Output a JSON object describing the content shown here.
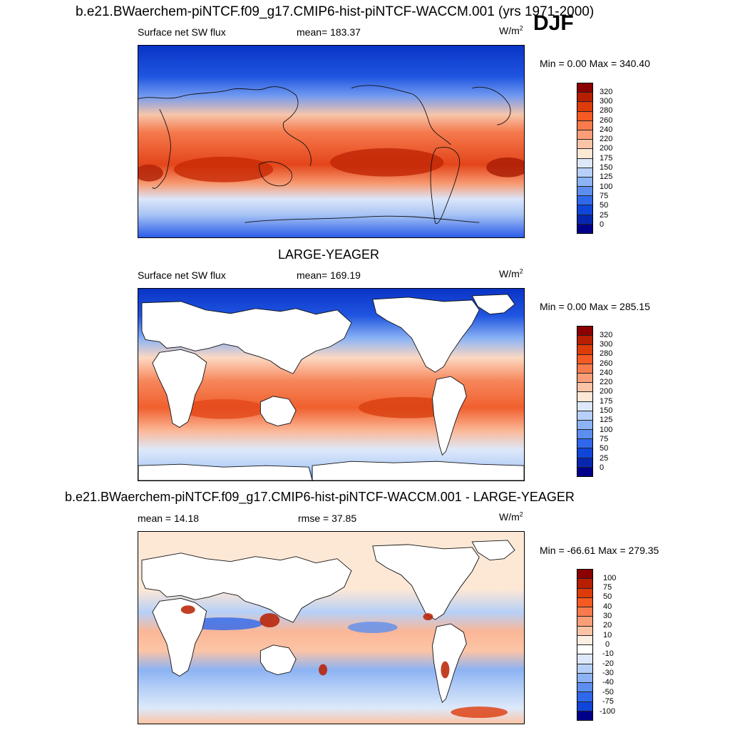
{
  "figure": {
    "title": "b.e21.BWaerchem-piNTCF.f09_g17.CMIP6-hist-piNTCF-WACCM.001 (yrs 1971-2000)",
    "season": "DJF"
  },
  "panels": [
    {
      "heading": "",
      "left_label": "Surface net SW flux",
      "center_label": "mean= 183.37",
      "unit": "W/m",
      "unit_exp": "2",
      "minmax": "Min =   0.00 Max = 340.40",
      "land_masked": false,
      "levels": [
        "320",
        "300",
        "280",
        "260",
        "240",
        "220",
        "200",
        "175",
        "150",
        "125",
        "100",
        "75",
        "50",
        "25",
        "0"
      ],
      "colors": [
        "#8b0000",
        "#b81e00",
        "#dd3b0a",
        "#f55a22",
        "#f77b4c",
        "#fa9e77",
        "#fcc4a6",
        "#fde8d6",
        "#dde9fa",
        "#b7d0f7",
        "#8cb3f4",
        "#5c8ef0",
        "#3068ec",
        "#0f45d9",
        "#0527b0",
        "#00008a"
      ]
    },
    {
      "heading": "LARGE-YEAGER",
      "left_label": "Surface net SW flux",
      "center_label": "mean= 169.19",
      "unit": "W/m",
      "unit_exp": "2",
      "minmax": "Min =   0.00 Max = 285.15",
      "land_masked": true,
      "levels": [
        "320",
        "300",
        "280",
        "260",
        "240",
        "220",
        "200",
        "175",
        "150",
        "125",
        "100",
        "75",
        "50",
        "25",
        "0"
      ],
      "colors": [
        "#8b0000",
        "#b81e00",
        "#dd3b0a",
        "#f55a22",
        "#f77b4c",
        "#fa9e77",
        "#fcc4a6",
        "#fde8d6",
        "#dde9fa",
        "#b7d0f7",
        "#8cb3f4",
        "#5c8ef0",
        "#3068ec",
        "#0f45d9",
        "#0527b0",
        "#00008a"
      ]
    },
    {
      "heading": "b.e21.BWaerchem-piNTCF.f09_g17.CMIP6-hist-piNTCF-WACCM.001 - LARGE-YEAGER",
      "left_label": "mean =  14.18",
      "center_label": "rmse =  37.85",
      "unit": "W/m",
      "unit_exp": "2",
      "minmax": "Min = -66.61 Max = 279.35",
      "land_masked": true,
      "levels": [
        "100",
        "75",
        "50",
        "40",
        "30",
        "20",
        "10",
        "0",
        "-10",
        "-20",
        "-30",
        "-40",
        "-50",
        "-75",
        "-100"
      ],
      "colors": [
        "#8b0000",
        "#b81e00",
        "#dd3b0a",
        "#f55a22",
        "#f77b4c",
        "#fa9e77",
        "#fcc4a6",
        "#fdeee2",
        "#ffffff",
        "#dde9fa",
        "#b7d0f7",
        "#8cb3f4",
        "#5c8ef0",
        "#3068ec",
        "#0f45d9",
        "#00008a"
      ]
    }
  ]
}
